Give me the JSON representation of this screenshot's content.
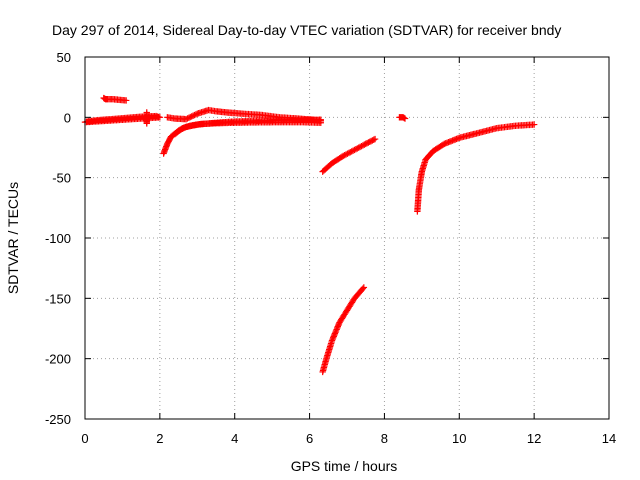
{
  "chart_data": {
    "type": "scatter",
    "title": "Day 297 of 2014, Sidereal Day-to-day VTEC variation (SDTVAR) for receiver bndy",
    "xlabel": "GPS time / hours",
    "ylabel": "SDTVAR / TECUs",
    "xlim": [
      0,
      14
    ],
    "ylim": [
      -250,
      50
    ],
    "xticks": [
      0,
      2,
      4,
      6,
      8,
      10,
      12,
      14
    ],
    "yticks": [
      50,
      0,
      -50,
      -100,
      -150,
      -200,
      -250
    ],
    "grid": true,
    "marker": "plus",
    "color": "#ff0000",
    "segments": [
      {
        "x": [
          0.0,
          0.2,
          0.4,
          0.6,
          0.8,
          1.0,
          1.2,
          1.4,
          1.6,
          1.8,
          2.0,
          1.9,
          1.5,
          1.1,
          0.7,
          0.3,
          0.05
        ],
        "y": [
          -4,
          -3.6,
          -3.2,
          -2.8,
          -2.4,
          -2,
          -1.6,
          -1.2,
          -0.8,
          -0.4,
          0,
          1,
          0.5,
          -0.5,
          -1.5,
          -2.5,
          -3.5
        ]
      },
      {
        "x": [
          0.5,
          0.55,
          0.6,
          0.75,
          1.1
        ],
        "y": [
          16,
          15,
          15,
          15,
          14
        ]
      },
      {
        "x": [
          1.65,
          1.65,
          1.65
        ],
        "y": [
          4,
          -2,
          -5
        ]
      },
      {
        "x": [
          2.1,
          2.2,
          2.3,
          2.5,
          2.7,
          3.0,
          3.5,
          4.0,
          4.5,
          5.0,
          5.5,
          6.0,
          6.3
        ],
        "y": [
          -30,
          -22,
          -16,
          -11,
          -8,
          -6,
          -4.5,
          -3.5,
          -3,
          -2.6,
          -2.3,
          -2.1,
          -2
        ]
      },
      {
        "x": [
          2.2,
          2.4,
          2.7,
          3.0,
          3.3,
          3.5,
          3.8,
          4.2,
          4.7,
          5.2,
          5.7,
          6.1,
          6.3
        ],
        "y": [
          0,
          -1,
          -1.5,
          3,
          6,
          5,
          4,
          3,
          2,
          0,
          -1,
          -2,
          -3
        ]
      },
      {
        "x": [
          2.4,
          2.6,
          2.8,
          3.1,
          3.4,
          3.8,
          4.3,
          4.8,
          5.3,
          5.8,
          6.3
        ],
        "y": [
          -14,
          -9,
          -7,
          -5.5,
          -5,
          -4.6,
          -4.3,
          -4.1,
          -4,
          -4,
          -4.5
        ]
      },
      {
        "x": [
          6.35,
          6.6,
          6.9,
          7.2,
          7.5,
          7.75
        ],
        "y": [
          -45,
          -38,
          -32,
          -27,
          -22,
          -18
        ]
      },
      {
        "x": [
          6.35,
          6.45,
          6.6,
          6.8,
          7.0,
          7.2,
          7.45
        ],
        "y": [
          -211,
          -200,
          -185,
          -170,
          -160,
          -150,
          -141
        ]
      },
      {
        "x": [
          8.4,
          8.45,
          8.5,
          8.55
        ],
        "y": [
          0,
          0,
          0,
          -1
        ]
      },
      {
        "x": [
          8.88,
          8.92,
          9.0,
          9.1,
          9.3,
          9.6,
          10.0,
          10.5,
          11.0,
          11.5,
          12.0
        ],
        "y": [
          -78,
          -60,
          -45,
          -35,
          -28,
          -22,
          -17,
          -13,
          -9,
          -7,
          -6
        ]
      }
    ]
  }
}
